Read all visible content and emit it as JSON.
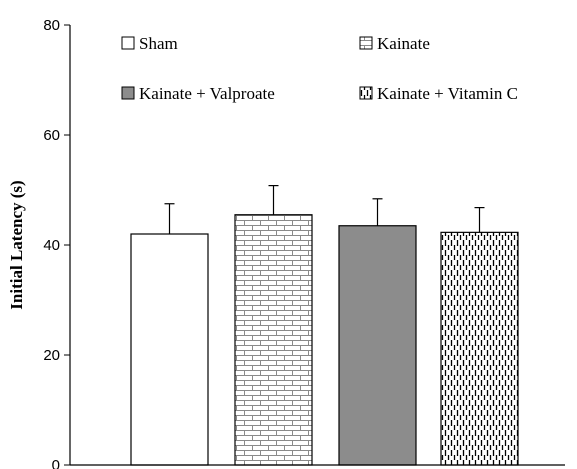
{
  "chart_data": {
    "type": "bar",
    "categories": [
      "Sham",
      "Kainate",
      "Kainate + Valproate",
      "Kainate + Vitamin C"
    ],
    "values": [
      42,
      45.5,
      43.5,
      42.3
    ],
    "error_upper": [
      47.5,
      50.8,
      48.4,
      46.8
    ],
    "xlabel": "",
    "ylabel": "Initial Latency (s)",
    "ylim": [
      0,
      80
    ],
    "yticks": [
      0,
      20,
      40,
      60,
      80
    ],
    "grid": false,
    "legend": {
      "placement": "top",
      "entries": [
        "Sham",
        "Kainate",
        "Kainate + Valproate",
        "Kainate + Vitamin C"
      ]
    },
    "patterns": [
      "white",
      "brick",
      "solid-gray",
      "dashed-vertical"
    ],
    "colors": {
      "bar_stroke": "#000000",
      "solid_fill": "#8c8c8c",
      "pattern_line": "#7a7a7a"
    }
  }
}
